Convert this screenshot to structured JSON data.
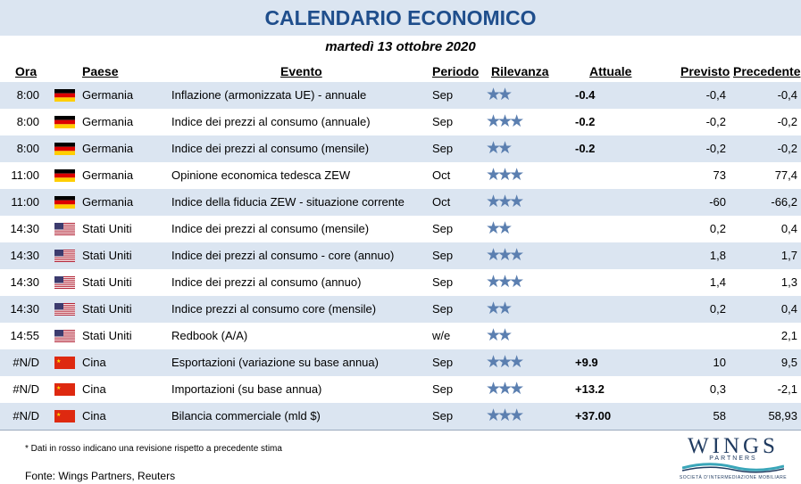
{
  "title": "CALENDARIO ECONOMICO",
  "date": "martedì 13 ottobre 2020",
  "headers": {
    "ora": "Ora",
    "paese": "Paese",
    "evento": "Evento",
    "periodo": "Periodo",
    "rilevanza": "Rilevanza",
    "attuale": "Attuale",
    "previsto": "Previsto",
    "precedente": "Precedente"
  },
  "rows": [
    {
      "ora": "8:00",
      "flag": "germany-flag-icon",
      "paese": "Germania",
      "evento": "Inflazione (armonizzata UE) - annuale",
      "periodo": "Sep",
      "stars": "★★",
      "attuale": "-0.4",
      "previsto": "-0,4",
      "precedente": "-0,4"
    },
    {
      "ora": "8:00",
      "flag": "germany-flag-icon",
      "paese": "Germania",
      "evento": "Indice dei prezzi al consumo (annuale)",
      "periodo": "Sep",
      "stars": "★★★",
      "attuale": "-0.2",
      "previsto": "-0,2",
      "precedente": "-0,2"
    },
    {
      "ora": "8:00",
      "flag": "germany-flag-icon",
      "paese": "Germania",
      "evento": "Indice dei prezzi al consumo (mensile)",
      "periodo": "Sep",
      "stars": "★★",
      "attuale": "-0.2",
      "previsto": "-0,2",
      "precedente": "-0,2"
    },
    {
      "ora": "11:00",
      "flag": "germany-flag-icon",
      "paese": "Germania",
      "evento": "Opinione economica tedesca ZEW",
      "periodo": "Oct",
      "stars": "★★★",
      "attuale": "",
      "previsto": "73",
      "precedente": "77,4"
    },
    {
      "ora": "11:00",
      "flag": "germany-flag-icon",
      "paese": "Germania",
      "evento": "Indice della fiducia ZEW - situazione corrente",
      "periodo": "Oct",
      "stars": "★★★",
      "attuale": "",
      "previsto": "-60",
      "precedente": "-66,2"
    },
    {
      "ora": "14:30",
      "flag": "usa-flag-icon",
      "paese": "Stati Uniti",
      "evento": "Indice dei prezzi al consumo (mensile)",
      "periodo": "Sep",
      "stars": "★★",
      "attuale": "",
      "previsto": "0,2",
      "precedente": "0,4"
    },
    {
      "ora": "14:30",
      "flag": "usa-flag-icon",
      "paese": "Stati Uniti",
      "evento": "Indice dei prezzi al consumo - core (annuo)",
      "periodo": "Sep",
      "stars": "★★★",
      "attuale": "",
      "previsto": "1,8",
      "precedente": "1,7"
    },
    {
      "ora": "14:30",
      "flag": "usa-flag-icon",
      "paese": "Stati Uniti",
      "evento": "Indice dei prezzi al consumo (annuo)",
      "periodo": "Sep",
      "stars": "★★★",
      "attuale": "",
      "previsto": "1,4",
      "precedente": "1,3"
    },
    {
      "ora": "14:30",
      "flag": "usa-flag-icon",
      "paese": "Stati Uniti",
      "evento": "Indice prezzi al consumo core (mensile)",
      "periodo": "Sep",
      "stars": "★★",
      "attuale": "",
      "previsto": "0,2",
      "precedente": "0,4"
    },
    {
      "ora": "14:55",
      "flag": "usa-flag-icon",
      "paese": "Stati Uniti",
      "evento": "Redbook (A/A)",
      "periodo": "w/e",
      "stars": "★★",
      "attuale": "",
      "previsto": "",
      "precedente": "2,1"
    },
    {
      "ora": "#N/D",
      "flag": "china-flag-icon",
      "paese": "Cina",
      "evento": "Esportazioni (variazione su base annua)",
      "periodo": "Sep",
      "stars": "★★★",
      "attuale": "+9.9",
      "previsto": "10",
      "precedente": "9,5"
    },
    {
      "ora": "#N/D",
      "flag": "china-flag-icon",
      "paese": "Cina",
      "evento": "Importazioni (su base annua)",
      "periodo": "Sep",
      "stars": "★★★",
      "attuale": "+13.2",
      "previsto": "0,3",
      "precedente": "-2,1"
    },
    {
      "ora": "#N/D",
      "flag": "china-flag-icon",
      "paese": "Cina",
      "evento": "Bilancia commerciale (mld $)",
      "periodo": "Sep",
      "stars": "★★★",
      "attuale": "+37.00",
      "previsto": "58",
      "precedente": "58,93"
    }
  ],
  "note": "* Dati in rosso indicano una revisione rispetto a precedente stima",
  "source": "Fonte: Wings Partners, Reuters",
  "logo": {
    "name": "WINGS",
    "sub": "PARTNERS",
    "tagline": "SOCIETÀ D'INTERMEDIAZIONE MOBILIARE"
  },
  "colors": {
    "title": "#1f4e8c",
    "shade": "#dbe5f1",
    "star": "#5b7fb0"
  }
}
